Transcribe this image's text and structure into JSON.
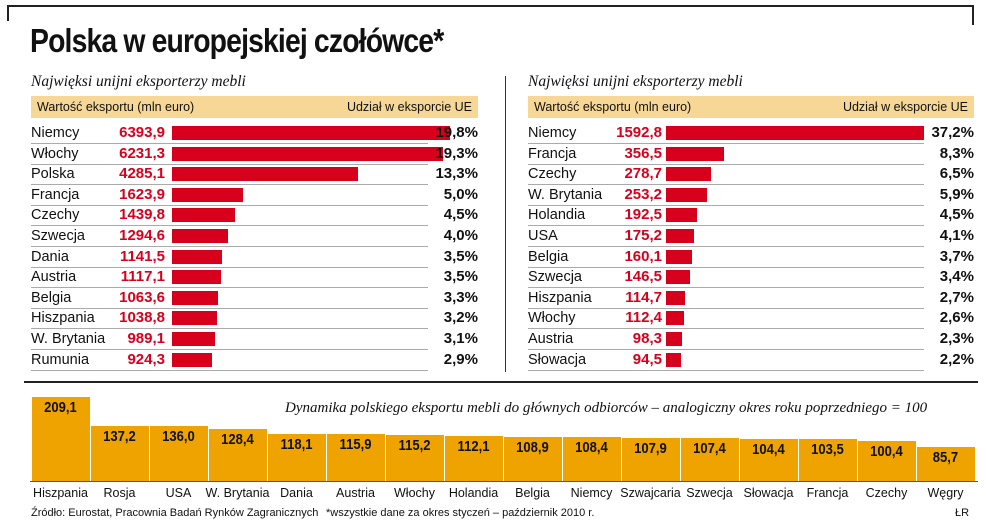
{
  "title": "Polska w europejskiej czołówce*",
  "left_panel": {
    "subtitle": "Najwięksi unijni eksporterzy mebli",
    "col_value": "Wartość eksportu (mln euro)",
    "col_share": "Udział w eksporcie UE"
  },
  "right_panel": {
    "subtitle": "Najwięksi unijni eksporterzy mebli",
    "col_value": "Wartość eksportu (mln euro)",
    "col_share": "Udział w eksporcie UE"
  },
  "dynamics": {
    "title": "Dynamika polskiego eksportu mebli do głównych odbiorców  – analogiczny okres roku poprzedniego = 100"
  },
  "footer": {
    "source": "Źródło: Eurostat, Pracownia Badań Rynków Zagranicznych",
    "note": "*wszystkie dane za okres styczeń – październik 2010 r.",
    "author": "ŁR"
  },
  "colors": {
    "red": "#d6001c",
    "orange": "#eea300",
    "header_bg": "#f7d796"
  },
  "chart_data": [
    {
      "type": "bar",
      "title": "Najwięksi unijni eksporterzy mebli",
      "categories": [
        "Niemcy",
        "Włochy",
        "Polska",
        "Francja",
        "Czechy",
        "Szwecja",
        "Dania",
        "Austria",
        "Belgia",
        "Hiszpania",
        "W. Brytania",
        "Rumunia"
      ],
      "values": [
        6393.9,
        6231.3,
        4285.1,
        1623.9,
        1439.8,
        1294.6,
        1141.5,
        1117.1,
        1063.6,
        1038.8,
        989.1,
        924.3
      ],
      "labels": [
        "6393,9",
        "6231,3",
        "4285,1",
        "1623,9",
        "1439,8",
        "1294,6",
        "1141,5",
        "1117,1",
        "1063,6",
        "1038,8",
        "989,1",
        "924,3"
      ],
      "shares": [
        "19,8%",
        "19,3%",
        "13,3%",
        "5,0%",
        "4,5%",
        "4,0%",
        "3,5%",
        "3,5%",
        "3,3%",
        "3,2%",
        "3,1%",
        "2,9%"
      ],
      "xlabel": "Wartość eksportu (mln euro)",
      "ylabel": "Udział w eksporcie UE"
    },
    {
      "type": "bar",
      "title": "Najwięksi unijni eksporterzy mebli",
      "categories": [
        "Niemcy",
        "Francja",
        "Czechy",
        "W. Brytania",
        "Holandia",
        "USA",
        "Belgia",
        "Szwecja",
        "Hiszpania",
        "Włochy",
        "Austria",
        "Słowacja"
      ],
      "values": [
        1592.8,
        356.5,
        278.7,
        253.2,
        192.5,
        175.2,
        160.1,
        146.5,
        114.7,
        112.4,
        98.3,
        94.5
      ],
      "labels": [
        "1592,8",
        "356,5",
        "278,7",
        "253,2",
        "192,5",
        "175,2",
        "160,1",
        "146,5",
        "114,7",
        "112,4",
        "98,3",
        "94,5"
      ],
      "shares": [
        "37,2%",
        "8,3%",
        "6,5%",
        "5,9%",
        "4,5%",
        "4,1%",
        "3,7%",
        "3,4%",
        "2,7%",
        "2,6%",
        "2,3%",
        "2,2%"
      ],
      "xlabel": "Wartość eksportu (mln euro)",
      "ylabel": "Udział w eksporcie UE"
    },
    {
      "type": "bar",
      "title": "Dynamika polskiego eksportu mebli do głównych odbiorców  – analogiczny okres roku poprzedniego = 100",
      "categories": [
        "Hiszpania",
        "Rosja",
        "USA",
        "W. Brytania",
        "Dania",
        "Austria",
        "Włochy",
        "Holandia",
        "Belgia",
        "Niemcy",
        "Szwajcaria",
        "Szwecja",
        "Słowacja",
        "Francja",
        "Czechy",
        "Węgry"
      ],
      "values": [
        209.1,
        137.2,
        136.0,
        128.4,
        118.1,
        115.9,
        115.2,
        112.1,
        108.9,
        108.4,
        107.9,
        107.4,
        104.4,
        103.5,
        100.4,
        85.7
      ],
      "labels": [
        "209,1",
        "137,2",
        "136,0",
        "128,4",
        "118,1",
        "115,9",
        "115,2",
        "112,1",
        "108,9",
        "108,4",
        "107,9",
        "107,4",
        "104,4",
        "103,5",
        "100,4",
        "85,7"
      ]
    }
  ]
}
